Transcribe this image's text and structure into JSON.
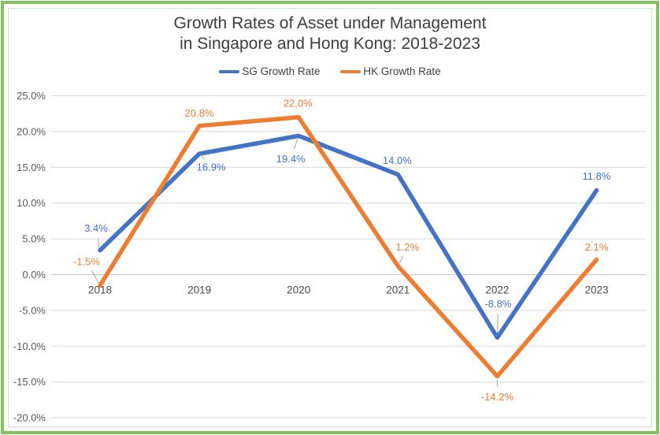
{
  "title": {
    "line1": "Growth Rates of Asset under Management",
    "line2": "in Singapore and Hong Kong: 2018-2023"
  },
  "legend": {
    "items": [
      {
        "label": "SG Growth Rate",
        "color": "#4472c4"
      },
      {
        "label": "HK Growth Rate",
        "color": "#ed7d31"
      }
    ]
  },
  "colors": {
    "frame_border_green": "#82c35e",
    "inner_border_gray": "#d9d9d9",
    "gridline": "#d9d9d9",
    "zero_axis": "#c6c6c6",
    "tick_label": "#595959",
    "year_label": "#474747",
    "leader_line": "#a6a6a6",
    "sg_blue": "#4472c4",
    "hk_orange": "#ed7d31"
  },
  "chart_data": {
    "type": "line",
    "title": "Growth Rates of Asset under Management in Singapore and Hong Kong: 2018-2023",
    "categories": [
      "2018",
      "2019",
      "2020",
      "2021",
      "2022",
      "2023"
    ],
    "series": [
      {
        "name": "SG Growth Rate",
        "color": "#4472c4",
        "values": [
          3.4,
          16.9,
          19.4,
          14.0,
          -8.8,
          11.8
        ],
        "labels": [
          "3.4%",
          "16.9%",
          "19.4%",
          "14.0%",
          "-8.8%",
          "11.8%"
        ]
      },
      {
        "name": "HK Growth Rate",
        "color": "#ed7d31",
        "values": [
          -1.5,
          20.8,
          22.0,
          1.2,
          -14.2,
          2.1
        ],
        "labels": [
          "-1.5%",
          "20.8%",
          "22.0%",
          "1.2%",
          "-14.2%",
          "2.1%"
        ]
      }
    ],
    "yticks": [
      {
        "value": 25,
        "label": "25.0%"
      },
      {
        "value": 20,
        "label": "20.0%"
      },
      {
        "value": 15,
        "label": "15.0%"
      },
      {
        "value": 10,
        "label": "10.0%"
      },
      {
        "value": 5,
        "label": "5.0%"
      },
      {
        "value": 0,
        "label": "0.0%"
      },
      {
        "value": -5,
        "label": "-5.0%"
      },
      {
        "value": -10,
        "label": "-10.0%"
      },
      {
        "value": -15,
        "label": "-15.0%"
      },
      {
        "value": -20,
        "label": "-20.0%"
      }
    ],
    "ylim": [
      -20,
      25
    ],
    "ytick_step": 5,
    "xlabel": "",
    "ylabel": "",
    "grid": true,
    "legend_position": "top",
    "data_labels": true
  }
}
